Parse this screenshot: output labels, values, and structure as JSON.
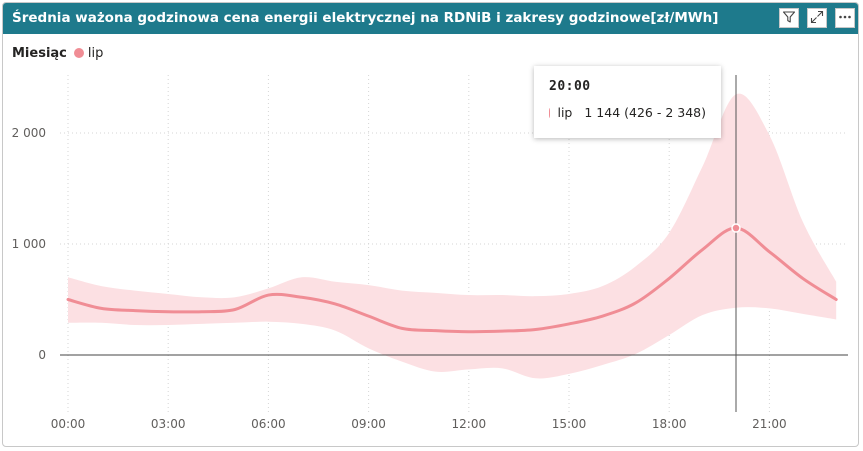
{
  "visual": {
    "title": "Średnia ważona godzinowa cena energii elektrycznej na RDNiB i zakresy godzinowe[zł/MWh]",
    "icons": [
      "filter-icon",
      "focus-mode-icon",
      "more-options-icon"
    ]
  },
  "legend": {
    "title": "Miesiąc",
    "items": [
      {
        "label": "lip",
        "color": "#f08d95"
      }
    ]
  },
  "tooltip": {
    "header": "20:00",
    "series": "lip",
    "value_text": "1 144 (426 - 2 348)"
  },
  "chart_data": {
    "type": "line",
    "x": [
      "00:00",
      "01:00",
      "02:00",
      "03:00",
      "04:00",
      "05:00",
      "06:00",
      "07:00",
      "08:00",
      "09:00",
      "10:00",
      "11:00",
      "12:00",
      "13:00",
      "14:00",
      "15:00",
      "16:00",
      "17:00",
      "18:00",
      "19:00",
      "20:00",
      "21:00",
      "22:00",
      "23:00"
    ],
    "xticks": [
      "00:00",
      "03:00",
      "06:00",
      "09:00",
      "12:00",
      "15:00",
      "18:00",
      "21:00"
    ],
    "yticks": [
      0,
      1000,
      2000
    ],
    "ytick_labels": [
      "0",
      "1 000",
      "2 000"
    ],
    "ylim": [
      -520,
      2520
    ],
    "grid": true,
    "series": [
      {
        "name": "lip",
        "color": "#f08d95",
        "band_color": "#fce0e3",
        "values": [
          500,
          420,
          400,
          390,
          390,
          410,
          540,
          520,
          460,
          350,
          240,
          220,
          210,
          215,
          230,
          280,
          350,
          470,
          690,
          950,
          1144,
          930,
          690,
          500
        ],
        "min": [
          290,
          290,
          270,
          270,
          280,
          290,
          300,
          280,
          220,
          60,
          -60,
          -150,
          -130,
          -120,
          -210,
          -170,
          -90,
          10,
          180,
          360,
          426,
          420,
          370,
          320
        ],
        "max": [
          700,
          620,
          580,
          550,
          520,
          520,
          600,
          700,
          660,
          630,
          580,
          560,
          540,
          540,
          530,
          550,
          620,
          800,
          1100,
          1700,
          2348,
          1980,
          1200,
          660
        ]
      }
    ],
    "highlight": {
      "x": "20:00",
      "value": 1144
    }
  }
}
